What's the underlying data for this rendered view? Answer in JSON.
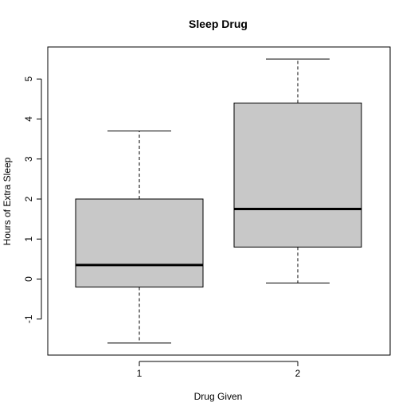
{
  "chart_data": {
    "type": "box",
    "title": "Sleep Drug",
    "xlabel": "Drug Given",
    "ylabel": "Hours of Extra Sleep",
    "categories": [
      "1",
      "2"
    ],
    "boxes": [
      {
        "group": "1",
        "min": -1.6,
        "q1": -0.2,
        "median": 0.35,
        "q3": 2.0,
        "max": 3.7
      },
      {
        "group": "2",
        "min": -0.1,
        "q1": 0.8,
        "median": 1.75,
        "q3": 4.4,
        "max": 5.5
      }
    ],
    "ylim": [
      -1.9,
      5.8
    ],
    "yticks": [
      -1,
      0,
      1,
      2,
      3,
      4,
      5
    ],
    "box_fill": "#c8c8c8",
    "grid": false
  }
}
